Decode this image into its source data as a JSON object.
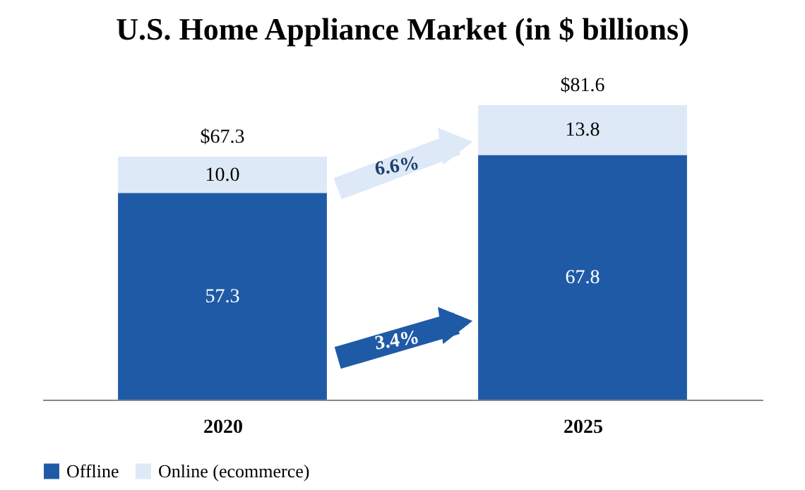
{
  "chart_data": {
    "type": "bar",
    "title": "U.S. Home Appliance Market (in $ billions)",
    "categories": [
      "2020",
      "2025"
    ],
    "stacked": true,
    "series": [
      {
        "name": "Offline",
        "color": "#1f5aa6",
        "values": [
          57.3,
          67.8
        ],
        "value_labels": [
          "57.3",
          "67.8"
        ]
      },
      {
        "name": "Online (ecommerce)",
        "color": "#dde9f6",
        "values": [
          10.0,
          13.8
        ],
        "value_labels": [
          "10.0",
          "13.8"
        ]
      }
    ],
    "totals": [
      "$67.3",
      "$81.6"
    ],
    "annotations": [
      "6.6%",
      "3.4%"
    ],
    "legend": "bottom",
    "grid": false
  }
}
